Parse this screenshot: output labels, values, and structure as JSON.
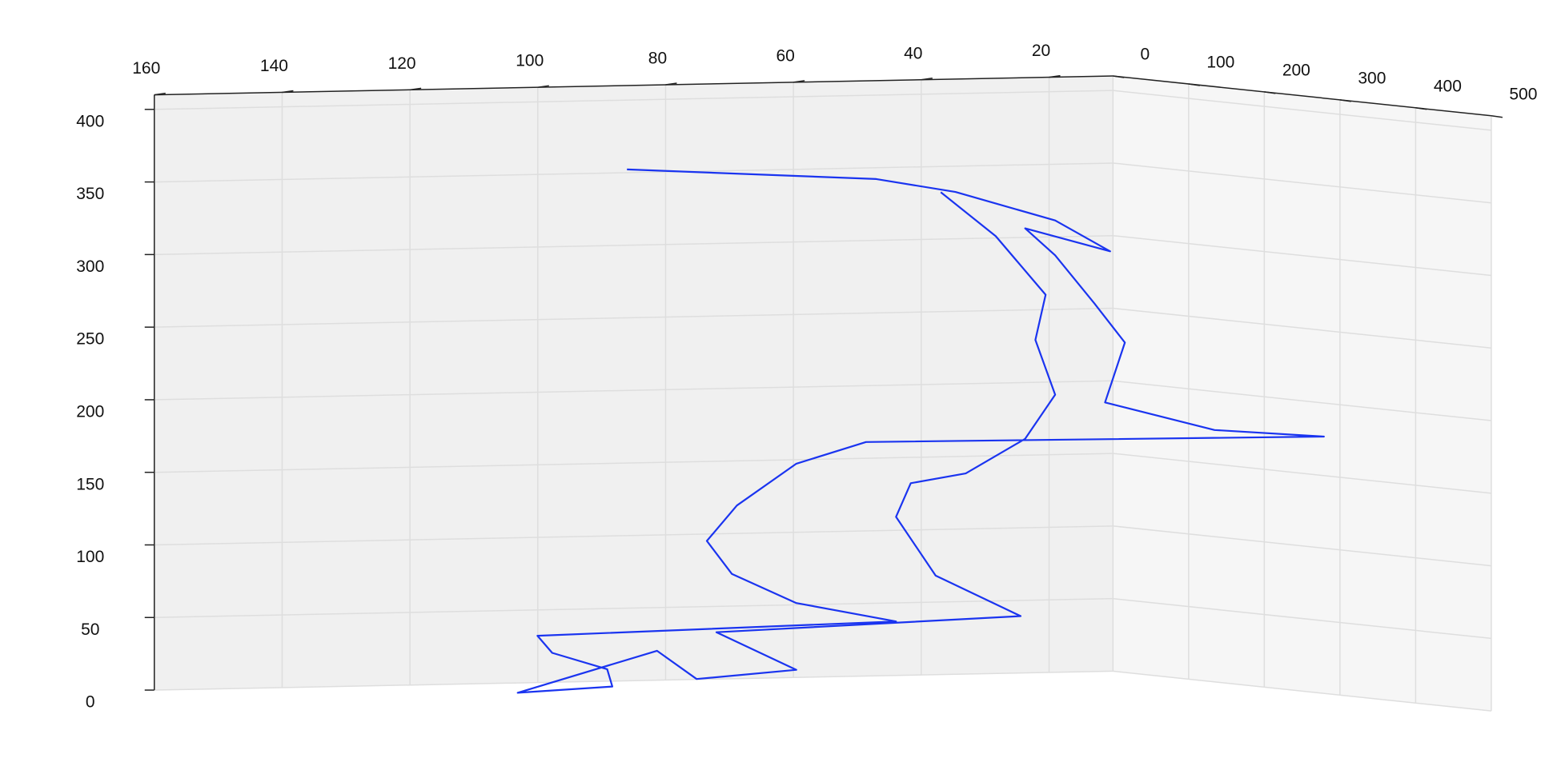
{
  "chart_data": {
    "type": "line3d",
    "series": [
      {
        "color": "#1a34f0",
        "x": [
          103.8,
          64.8,
          52.4,
          36.8,
          28.2,
          41.5,
          36.8,
          30.6,
          25.9,
          29,
          23.7,
          6.6,
          66.4,
          77.3,
          86.6,
          91.3,
          87.4,
          77.3,
          61.7,
          117.8,
          115.5,
          106.9,
          106.1,
          120.9,
          99.1,
          92.9,
          77.3,
          89.8,
          42.2,
          55.5,
          61.7,
          59.4,
          50.8,
          41.5,
          36.8,
          39.9,
          38.3,
          46.1,
          54.7
        ],
        "y": [
          150,
          150,
          150,
          150,
          150,
          150,
          150,
          150,
          150,
          150,
          250,
          250,
          150,
          150,
          150,
          150,
          150,
          150,
          150,
          150,
          150,
          150,
          150,
          150,
          150,
          150,
          150,
          150,
          150,
          150,
          150,
          150,
          150,
          150,
          150,
          150,
          150,
          150,
          150
        ],
        "z": [
          362,
          352,
          342,
          321,
          299,
          316,
          297,
          263,
          236,
          195,
          181,
          175,
          171,
          157,
          129,
          105,
          82,
          61,
          47,
          42,
          30,
          18,
          6,
          3,
          30,
          10,
          15,
          42,
          49,
          78,
          119,
          142,
          148,
          171,
          201,
          239,
          270,
          311,
          342
        ]
      }
    ],
    "xlim": [
      160,
      10
    ],
    "ylim": [
      0,
      500
    ],
    "zlim": [
      0,
      410
    ],
    "xticks": [
      160,
      140,
      120,
      100,
      80,
      60,
      40,
      20
    ],
    "yticks": [
      0,
      100,
      200,
      300,
      400,
      500
    ],
    "zticks": [
      0,
      50,
      100,
      150,
      200,
      250,
      300,
      350,
      400
    ],
    "grid": true
  }
}
